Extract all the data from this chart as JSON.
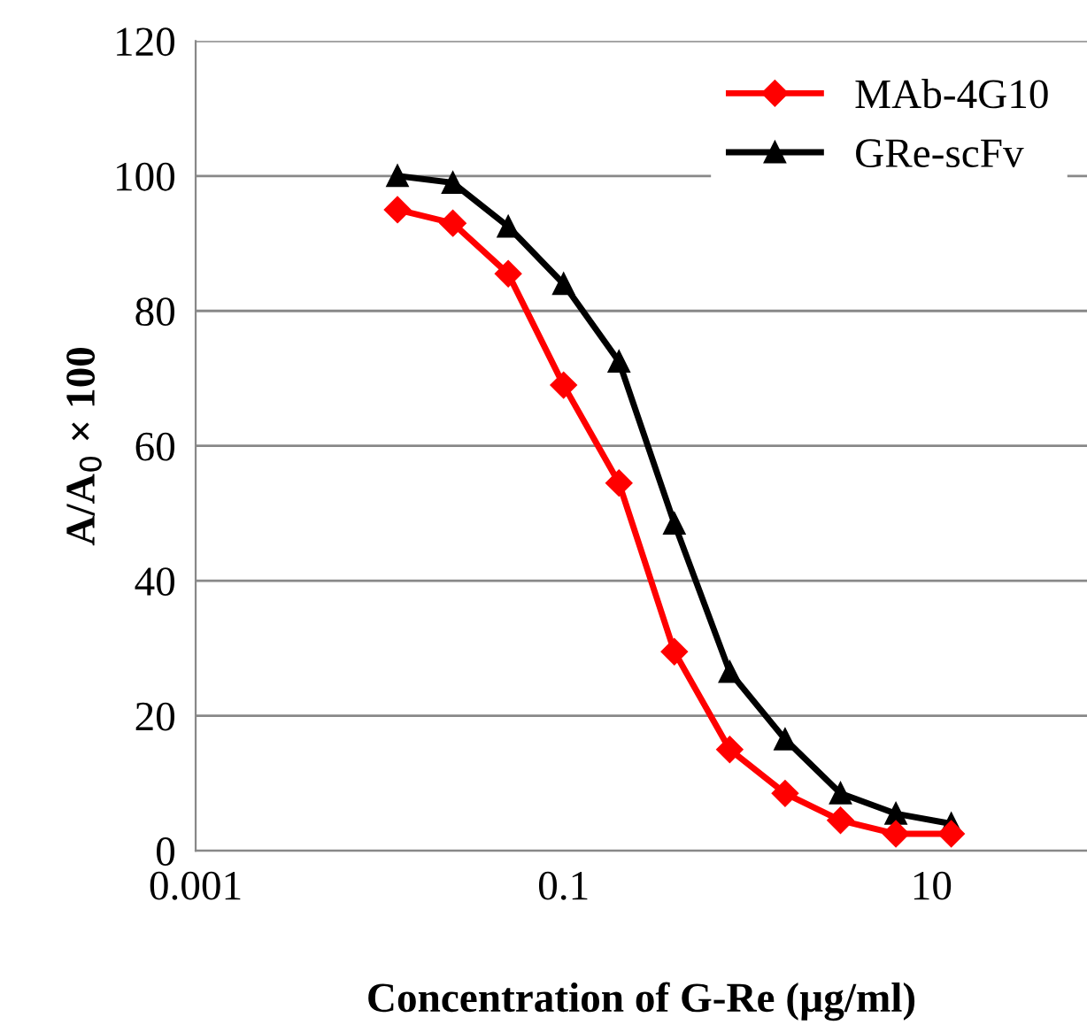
{
  "chart_data": {
    "type": "line",
    "xlabel": "Concentration of G-Re (µg/ml)",
    "ylabel": "A/A$_{0}$ × 100",
    "x": [
      0.0125,
      0.025,
      0.05,
      0.1,
      0.2,
      0.4,
      0.8,
      1.6,
      3.2,
      6.4,
      12.8
    ],
    "series": [
      {
        "name": "MAb-4G10",
        "color": "#ff0000",
        "marker": "diamond",
        "values": [
          95,
          93,
          85.5,
          69,
          54.5,
          29.5,
          15,
          8.5,
          4.5,
          2.5,
          2.5
        ]
      },
      {
        "name": "GRe-scFv",
        "color": "#000000",
        "marker": "triangle",
        "values": [
          100,
          99,
          92.5,
          84,
          72.5,
          48.5,
          26.5,
          16.5,
          8.5,
          5.5,
          4
        ]
      }
    ],
    "log": "x",
    "xlim": [
      0.001,
      70
    ],
    "xticks": [
      0.001,
      0.1,
      10
    ],
    "ylim": [
      0,
      120
    ],
    "yticks": [
      0,
      20,
      40,
      60,
      80,
      100,
      120
    ],
    "grid": "y",
    "legend": "top right",
    "line_style": "solid"
  }
}
